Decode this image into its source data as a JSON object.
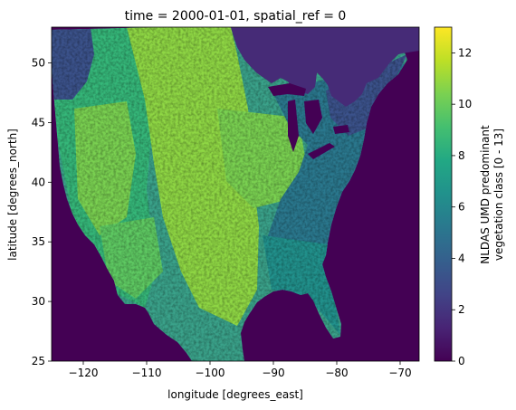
{
  "chart_data": {
    "type": "heatmap",
    "title": "time = 2000-01-01, spatial_ref = 0",
    "xlabel": "longitude [degrees_east]",
    "ylabel": "latitude [degrees_north]",
    "xlim": [
      -125,
      -67
    ],
    "ylim": [
      25,
      53
    ],
    "x_ticks": [
      -120,
      -110,
      -100,
      -90,
      -80,
      -70
    ],
    "x_tick_labels": [
      "−120",
      "−110",
      "−100",
      "−90",
      "−80",
      "−70"
    ],
    "y_ticks": [
      25,
      30,
      35,
      40,
      45,
      50
    ],
    "y_tick_labels": [
      "25",
      "30",
      "35",
      "40",
      "45",
      "50"
    ],
    "colorbar": {
      "label_line1": "NLDAS UMD predominant",
      "label_line2": "vegetation class [0 - 13]",
      "range": [
        0,
        13
      ],
      "ticks": [
        0,
        2,
        4,
        6,
        8,
        10,
        12
      ],
      "tick_labels": [
        "0",
        "2",
        "4",
        "6",
        "8",
        "10",
        "12"
      ],
      "colormap": "viridis"
    },
    "colors": {
      "ocean_nodata": "#440154",
      "forest": "#31688e",
      "mixed": "#21918c",
      "grass_crop": "#5ec962",
      "crop": "#8fd744",
      "high": "#fde725"
    },
    "grid": false
  }
}
